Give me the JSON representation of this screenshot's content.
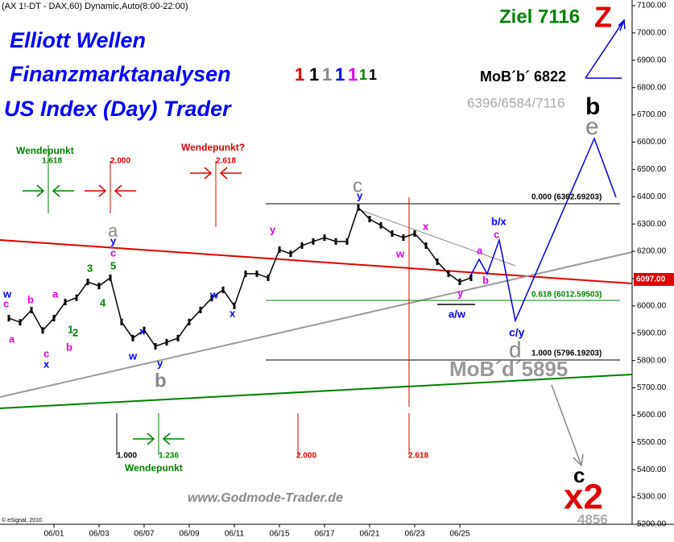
{
  "chart_data": {
    "type": "line",
    "title": "(AX 1!-DT - DAX,60) Dynamic,Auto(8:00-22:00)",
    "categories": [
      null,
      null,
      null,
      null,
      "06/01",
      null,
      null,
      null,
      "06/03",
      null,
      null,
      null,
      "06/07",
      null,
      null,
      null,
      "06/09",
      null,
      null,
      null,
      "06/11",
      null,
      null,
      null,
      "06/15",
      null,
      null,
      null,
      "06/17",
      null,
      null,
      null,
      "06/21",
      null,
      null,
      null,
      "06/23",
      null,
      null,
      null,
      "06/25",
      null
    ],
    "series": [
      {
        "name": "DAX",
        "color": "#000000",
        "values": [
          5955,
          5940,
          5985,
          5910,
          5955,
          6014,
          6030,
          6088,
          6073,
          6103,
          5941,
          5882,
          5912,
          5852,
          5867,
          5882,
          5941,
          5985,
          6029,
          6059,
          6000,
          6118,
          6118,
          6103,
          6206,
          6191,
          6221,
          6236,
          6250,
          6236,
          6236,
          6360,
          6318,
          6295,
          6265,
          6250,
          6265,
          6221,
          6162,
          6118,
          6088,
          6103
        ]
      }
    ],
    "ylim": [
      5200,
      7100
    ],
    "yticks": [
      {
        "value": 5200,
        "label": "5200.00"
      },
      {
        "value": 5300,
        "label": "5300.00"
      },
      {
        "value": 5400,
        "label": "5400.00"
      },
      {
        "value": 5500,
        "label": "5500.00"
      },
      {
        "value": 5600,
        "label": "5600.00"
      },
      {
        "value": 5700,
        "label": "5700.00"
      },
      {
        "value": 5800,
        "label": "5800.00"
      },
      {
        "value": 5900,
        "label": "5900.00"
      },
      {
        "value": 6000,
        "label": "6000.00"
      },
      {
        "value": 6100,
        "label": "6100.00"
      },
      {
        "value": 6200,
        "label": "6200.00"
      },
      {
        "value": 6300,
        "label": "6300.00"
      },
      {
        "value": 6400,
        "label": "6400.00"
      },
      {
        "value": 6500,
        "label": "6500.00"
      },
      {
        "value": 6600,
        "label": "6600.00"
      },
      {
        "value": 6700,
        "label": "6700.00"
      },
      {
        "value": 6800,
        "label": "6800.00"
      },
      {
        "value": 6900,
        "label": "6900.00"
      },
      {
        "value": 7000,
        "label": "7000.00"
      },
      {
        "value": 7100,
        "label": "7100.00"
      }
    ],
    "annotations": [
      "Elliott Wellen",
      "Finanzmarktanalysen",
      "US Index (Day) Trader",
      "1",
      "1",
      "1",
      "1",
      "1",
      "1",
      "1",
      "Ziel 7116",
      "Z",
      "MoB´b´ 6822",
      "6396/6584/7116",
      "b",
      "e",
      "Wendepunkt",
      "1.618",
      "2.000",
      "Wendepunkt?",
      "2.618",
      "0.000 (6362.69203)",
      "0.618 (6012.59503)",
      "1.000 (5796.19203)",
      "MoB´d´5895",
      "d",
      "c/y",
      "c",
      "x2",
      "4856",
      "www.Godmode-Trader.de",
      "© eSignal, 2010",
      "1.000",
      "1.236",
      "Wendepunkt",
      "2.000",
      "2.618",
      "w",
      "c",
      "b",
      "a",
      "a",
      "1",
      "2",
      "b",
      "c",
      "x",
      "3",
      "5",
      "4",
      "a",
      "y",
      "c",
      "x",
      "w",
      "y",
      "b",
      "w",
      "x",
      "y",
      "c",
      "y",
      "w",
      "x",
      "a",
      "b",
      "y",
      "a/w",
      "b/x",
      "c",
      "6097.00"
    ]
  }
}
